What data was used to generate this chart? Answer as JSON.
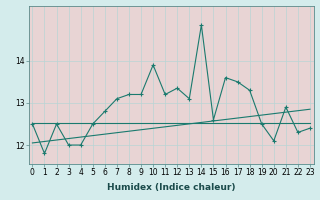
{
  "xlabel": "Humidex (Indice chaleur)",
  "x_values": [
    0,
    1,
    2,
    3,
    4,
    5,
    6,
    7,
    8,
    9,
    10,
    11,
    12,
    13,
    14,
    15,
    16,
    17,
    18,
    19,
    20,
    21,
    22,
    23
  ],
  "main_line": [
    12.5,
    11.8,
    12.5,
    12.0,
    12.0,
    12.5,
    12.8,
    13.1,
    13.2,
    13.2,
    13.9,
    13.2,
    13.35,
    13.1,
    14.85,
    12.6,
    13.6,
    13.5,
    13.3,
    12.5,
    12.1,
    12.9,
    12.3,
    12.4
  ],
  "trend1_y": [
    12.52,
    12.52
  ],
  "trend2_y": [
    12.05,
    12.85
  ],
  "bg_color": "#d4ecec",
  "grid_bg_color": "#e8d4d4",
  "grid_line_color": "#b8d4d4",
  "line_color": "#1a7a6e",
  "yticks": [
    12,
    13,
    14
  ],
  "ylim": [
    11.55,
    15.3
  ],
  "tick_label_size": 5.5,
  "xlabel_size": 6.5
}
